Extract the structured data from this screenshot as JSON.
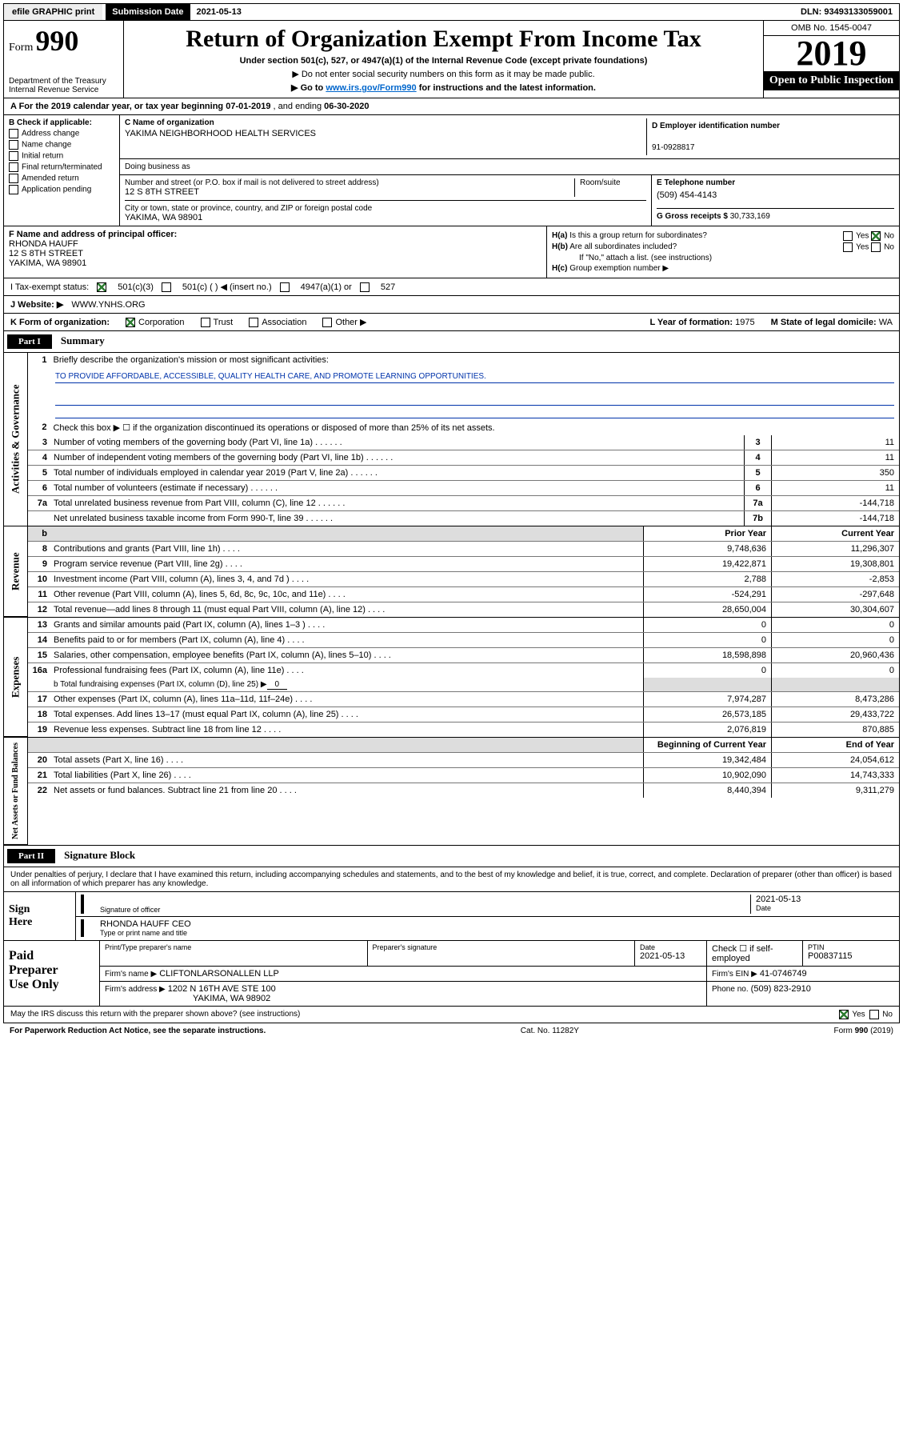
{
  "topbar": {
    "efile": "efile GRAPHIC print",
    "subLabel": "Submission Date",
    "subDate": "2021-05-13",
    "dln": "DLN: 93493133059001"
  },
  "header": {
    "formWord": "Form",
    "formNum": "990",
    "dept": "Department of the Treasury\nInternal Revenue Service",
    "title": "Return of Organization Exempt From Income Tax",
    "sub1": "Under section 501(c), 527, or 4947(a)(1) of the Internal Revenue Code (except private foundations)",
    "sub2": "▶ Do not enter social security numbers on this form as it may be made public.",
    "sub3_pre": "▶ Go to ",
    "sub3_link": "www.irs.gov/Form990",
    "sub3_post": " for instructions and the latest information.",
    "omb": "OMB No. 1545-0047",
    "year": "2019",
    "open": "Open to Public Inspection"
  },
  "lineA": {
    "text_pre": "A For the 2019 calendar year, or tax year beginning ",
    "begin": "07-01-2019",
    "text_mid": " , and ending ",
    "end": "06-30-2020"
  },
  "colB": {
    "head": "B Check if applicable:",
    "items": [
      "Address change",
      "Name change",
      "Initial return",
      "Final return/terminated",
      "Amended return",
      "Application pending"
    ]
  },
  "org": {
    "nameLbl": "C Name of organization",
    "name": "YAKIMA NEIGHBORHOOD HEALTH SERVICES",
    "dbaLbl": "Doing business as",
    "dba": "",
    "addrLbl": "Number and street (or P.O. box if mail is not delivered to street address)",
    "addr": "12 S 8TH STREET",
    "suiteLbl": "Room/suite",
    "cityLbl": "City or town, state or province, country, and ZIP or foreign postal code",
    "city": "YAKIMA, WA  98901"
  },
  "colD": {
    "lbl": "D Employer identification number",
    "val": "91-0928817"
  },
  "colE": {
    "lbl": "E Telephone number",
    "val": "(509) 454-4143"
  },
  "grossLbl": "G Gross receipts $",
  "gross": "30,733,169",
  "officer": {
    "lbl": "F Name and address of principal officer:",
    "name": "RHONDA HAUFF",
    "addr1": "12 S 8TH STREET",
    "addr2": "YAKIMA, WA  98901"
  },
  "colH": {
    "a": "H(a)",
    "aTxt": "Is this a group return for subordinates?",
    "b": "H(b)",
    "bTxt": "Are all subordinates included?",
    "bNote": "If \"No,\" attach a list. (see instructions)",
    "c": "H(c)",
    "cTxt": "Group exemption number ▶",
    "yes": "Yes",
    "no": "No"
  },
  "taxExempt": {
    "lbl": "I   Tax-exempt status:",
    "o1": "501(c)(3)",
    "o2": "501(c) (  ) ◀ (insert no.)",
    "o3": "4947(a)(1) or",
    "o4": "527"
  },
  "website": {
    "lbl": "J   Website: ▶",
    "val": "WWW.YNHS.ORG"
  },
  "lineK": {
    "lbl": "K Form of organization:",
    "opts": [
      "Corporation",
      "Trust",
      "Association",
      "Other ▶"
    ]
  },
  "lineL": {
    "lbl": "L Year of formation:",
    "val": "1975"
  },
  "lineM": {
    "lbl": "M State of legal domicile:",
    "val": "WA"
  },
  "part1": {
    "bar": "Part I",
    "title": "Summary"
  },
  "gov": {
    "vbar": "Activities & Governance",
    "l1": "Briefly describe the organization's mission or most significant activities:",
    "mission": "TO PROVIDE AFFORDABLE, ACCESSIBLE, QUALITY HEALTH CARE, AND PROMOTE LEARNING OPPORTUNITIES.",
    "l2": "Check this box ▶ ☐  if the organization discontinued its operations or disposed of more than 25% of its net assets.",
    "rows": [
      {
        "n": "3",
        "lbl": "Number of voting members of the governing body (Part VI, line 1a)",
        "box": "3",
        "val": "11"
      },
      {
        "n": "4",
        "lbl": "Number of independent voting members of the governing body (Part VI, line 1b)",
        "box": "4",
        "val": "11"
      },
      {
        "n": "5",
        "lbl": "Total number of individuals employed in calendar year 2019 (Part V, line 2a)",
        "box": "5",
        "val": "350"
      },
      {
        "n": "6",
        "lbl": "Total number of volunteers (estimate if necessary)",
        "box": "6",
        "val": "11"
      },
      {
        "n": "7a",
        "lbl": "Total unrelated business revenue from Part VIII, column (C), line 12",
        "box": "7a",
        "val": "-144,718"
      },
      {
        "n": " ",
        "lbl": "Net unrelated business taxable income from Form 990-T, line 39",
        "box": "7b",
        "val": "-144,718"
      }
    ]
  },
  "revHead": {
    "prior": "Prior Year",
    "current": "Current Year"
  },
  "revenue": {
    "vbar": "Revenue",
    "rows": [
      {
        "n": "8",
        "lbl": "Contributions and grants (Part VIII, line 1h)",
        "p": "9,748,636",
        "c": "11,296,307"
      },
      {
        "n": "9",
        "lbl": "Program service revenue (Part VIII, line 2g)",
        "p": "19,422,871",
        "c": "19,308,801"
      },
      {
        "n": "10",
        "lbl": "Investment income (Part VIII, column (A), lines 3, 4, and 7d )",
        "p": "2,788",
        "c": "-2,853"
      },
      {
        "n": "11",
        "lbl": "Other revenue (Part VIII, column (A), lines 5, 6d, 8c, 9c, 10c, and 11e)",
        "p": "-524,291",
        "c": "-297,648"
      },
      {
        "n": "12",
        "lbl": "Total revenue—add lines 8 through 11 (must equal Part VIII, column (A), line 12)",
        "p": "28,650,004",
        "c": "30,304,607"
      }
    ]
  },
  "expenses": {
    "vbar": "Expenses",
    "rows": [
      {
        "n": "13",
        "lbl": "Grants and similar amounts paid (Part IX, column (A), lines 1–3 )",
        "p": "0",
        "c": "0"
      },
      {
        "n": "14",
        "lbl": "Benefits paid to or for members (Part IX, column (A), line 4)",
        "p": "0",
        "c": "0"
      },
      {
        "n": "15",
        "lbl": "Salaries, other compensation, employee benefits (Part IX, column (A), lines 5–10)",
        "p": "18,598,898",
        "c": "20,960,436"
      },
      {
        "n": "16a",
        "lbl": "Professional fundraising fees (Part IX, column (A), line 11e)",
        "p": "0",
        "c": "0"
      }
    ],
    "l16b_pre": "b  Total fundraising expenses (Part IX, column (D), line 25) ▶",
    "l16b_val": "0",
    "rows2": [
      {
        "n": "17",
        "lbl": "Other expenses (Part IX, column (A), lines 11a–11d, 11f–24e)",
        "p": "7,974,287",
        "c": "8,473,286"
      },
      {
        "n": "18",
        "lbl": "Total expenses. Add lines 13–17 (must equal Part IX, column (A), line 25)",
        "p": "26,573,185",
        "c": "29,433,722"
      },
      {
        "n": "19",
        "lbl": "Revenue less expenses. Subtract line 18 from line 12",
        "p": "2,076,819",
        "c": "870,885"
      }
    ]
  },
  "netHead": {
    "b": "Beginning of Current Year",
    "e": "End of Year"
  },
  "net": {
    "vbar": "Net Assets or Fund Balances",
    "rows": [
      {
        "n": "20",
        "lbl": "Total assets (Part X, line 16)",
        "p": "19,342,484",
        "c": "24,054,612"
      },
      {
        "n": "21",
        "lbl": "Total liabilities (Part X, line 26)",
        "p": "10,902,090",
        "c": "14,743,333"
      },
      {
        "n": "22",
        "lbl": "Net assets or fund balances. Subtract line 21 from line 20",
        "p": "8,440,394",
        "c": "9,311,279"
      }
    ]
  },
  "part2": {
    "bar": "Part II",
    "title": "Signature Block"
  },
  "perjury": "Under penalties of perjury, I declare that I have examined this return, including accompanying schedules and statements, and to the best of my knowledge and belief, it is true, correct, and complete. Declaration of preparer (other than officer) is based on all information of which preparer has any knowledge.",
  "sign": {
    "left": "Sign Here",
    "sigLbl": "Signature of officer",
    "date": "2021-05-13",
    "dateLbl": "Date",
    "name": "RHONDA HAUFF CEO",
    "nameLbl": "Type or print name and title"
  },
  "paid": {
    "left": "Paid Preparer Use Only",
    "r1c1Lbl": "Print/Type preparer's name",
    "r1c2Lbl": "Preparer's signature",
    "r1c3Lbl": "Date",
    "r1c3": "2021-05-13",
    "r1c4": "Check ☐ if self-employed",
    "r1c5Lbl": "PTIN",
    "r1c5": "P00837115",
    "firmNameLbl": "Firm's name    ▶",
    "firmName": "CLIFTONLARSONALLEN LLP",
    "firmEinLbl": "Firm's EIN ▶",
    "firmEin": "41-0746749",
    "firmAddrLbl": "Firm's address ▶",
    "firmAddr1": "1202 N 16TH AVE STE 100",
    "firmAddr2": "YAKIMA, WA  98902",
    "phoneLbl": "Phone no.",
    "phone": "(509) 823-2910"
  },
  "discuss": {
    "txt": "May the IRS discuss this return with the preparer shown above? (see instructions)",
    "yes": "Yes",
    "no": "No"
  },
  "foot": {
    "left": "For Paperwork Reduction Act Notice, see the separate instructions.",
    "mid": "Cat. No. 11282Y",
    "right": "Form 990 (2019)"
  }
}
